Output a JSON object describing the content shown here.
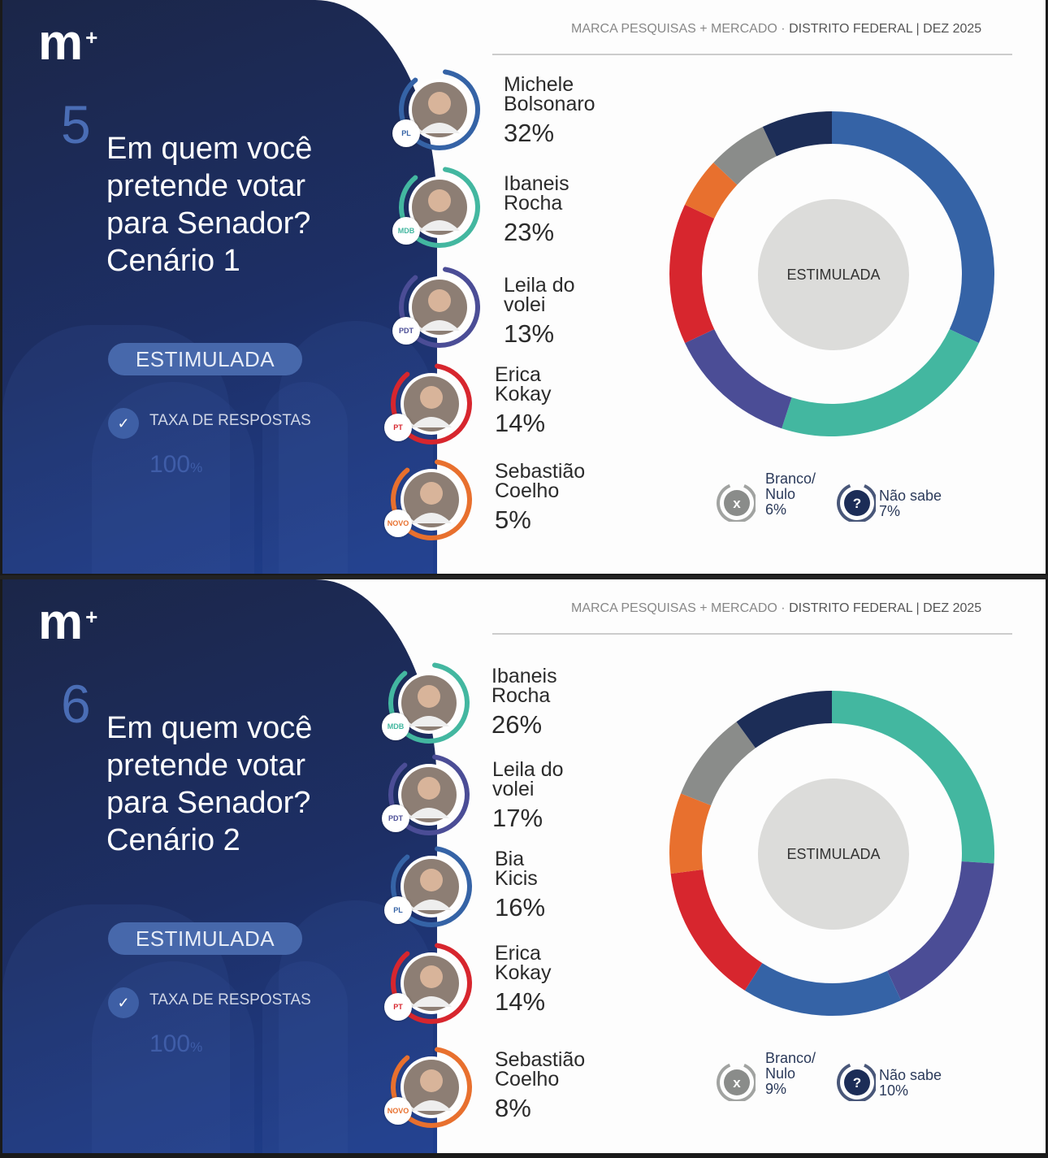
{
  "header": {
    "source": "MARCA PESQUISAS + MERCADO",
    "dot": "·",
    "region": "DISTRITO FEDERAL |",
    "date": "DEZ 2025"
  },
  "logo": "m+",
  "colors": {
    "blue": "#3563a6",
    "teal": "#43b7a0",
    "purple": "#4b4d96",
    "red": "#d7262e",
    "orange": "#e8702e",
    "gray": "#8a8c8a",
    "navy": "#1c2d57"
  },
  "chart_data": [
    {
      "type": "pie",
      "question_number": "5",
      "title": "Em quem você pretende votar para Senador? Cenário 1",
      "badge": "ESTIMULADA",
      "center_label": "ESTIMULADA",
      "response_rate_label": "TAXA DE RESPOSTAS",
      "response_rate": "100",
      "response_rate_unit": "%",
      "candidates": [
        {
          "name_l1": "Michele",
          "name_l2": "Bolsonaro",
          "value": 32,
          "label": "32%",
          "party": "PL",
          "color": "#3563a6"
        },
        {
          "name_l1": "Ibaneis",
          "name_l2": "Rocha",
          "value": 23,
          "label": "23%",
          "party": "MDB",
          "color": "#43b7a0"
        },
        {
          "name_l1": "Leila do",
          "name_l2": "volei",
          "value": 13,
          "label": "13%",
          "party": "PDT",
          "color": "#4b4d96"
        },
        {
          "name_l1": "Erica",
          "name_l2": "Kokay",
          "value": 14,
          "label": "14%",
          "party": "PT",
          "color": "#d7262e"
        },
        {
          "name_l1": "Sebastião",
          "name_l2": "Coelho",
          "value": 5,
          "label": "5%",
          "party": "NOVO",
          "color": "#e8702e"
        }
      ],
      "others": [
        {
          "name_l1": "Branco/",
          "name_l2": "Nulo",
          "value": 6,
          "label": "6%",
          "color": "#8a8c8a",
          "icon": "x"
        },
        {
          "name_l1": "Não sabe",
          "name_l2": "",
          "value": 7,
          "label": "7%",
          "color": "#1c2d57",
          "icon": "?"
        }
      ]
    },
    {
      "type": "pie",
      "question_number": "6",
      "title": "Em quem você pretende votar para Senador? Cenário 2",
      "badge": "ESTIMULADA",
      "center_label": "ESTIMULADA",
      "response_rate_label": "TAXA DE RESPOSTAS",
      "response_rate": "100",
      "response_rate_unit": "%",
      "candidates": [
        {
          "name_l1": "Ibaneis",
          "name_l2": "Rocha",
          "value": 26,
          "label": "26%",
          "party": "MDB",
          "color": "#43b7a0"
        },
        {
          "name_l1": "Leila do",
          "name_l2": "volei",
          "value": 17,
          "label": "17%",
          "party": "PDT",
          "color": "#4b4d96"
        },
        {
          "name_l1": "Bia",
          "name_l2": "Kicis",
          "value": 16,
          "label": "16%",
          "party": "PL",
          "color": "#3563a6"
        },
        {
          "name_l1": "Erica",
          "name_l2": "Kokay",
          "value": 14,
          "label": "14%",
          "party": "PT",
          "color": "#d7262e"
        },
        {
          "name_l1": "Sebastião",
          "name_l2": "Coelho",
          "value": 8,
          "label": "8%",
          "party": "NOVO",
          "color": "#e8702e"
        }
      ],
      "others": [
        {
          "name_l1": "Branco/",
          "name_l2": "Nulo",
          "value": 9,
          "label": "9%",
          "color": "#8a8c8a",
          "icon": "x"
        },
        {
          "name_l1": "Não sabe",
          "name_l2": "",
          "value": 10,
          "label": "10%",
          "color": "#1c2d57",
          "icon": "?"
        }
      ]
    }
  ]
}
